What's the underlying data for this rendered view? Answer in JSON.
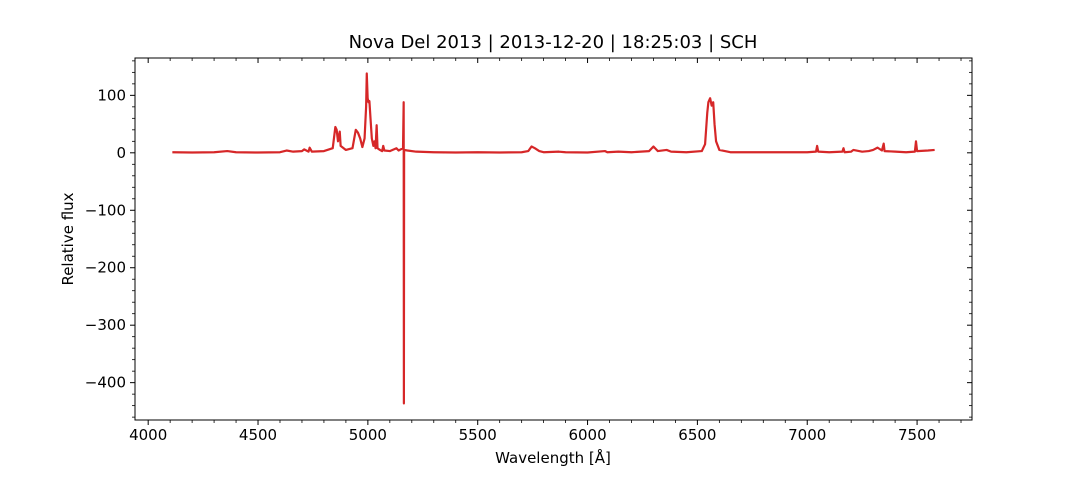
{
  "chart_data": {
    "type": "line",
    "title": "Nova Del 2013 | 2013-12-20 | 18:25:03 | SCH",
    "xlabel": "Wavelength [Å]",
    "ylabel": "Relative flux",
    "xlim": [
      3940,
      7750
    ],
    "ylim": [
      -465,
      165
    ],
    "x_ticks": [
      4000,
      4500,
      5000,
      5500,
      6000,
      6500,
      7000,
      7500
    ],
    "x_tick_labels": [
      "4000",
      "4500",
      "5000",
      "5500",
      "6000",
      "6500",
      "7000",
      "7500"
    ],
    "x_minor_step": 100,
    "y_ticks": [
      100,
      0,
      -100,
      -200,
      -300,
      -400
    ],
    "y_tick_labels": [
      "100",
      "0",
      "−100",
      "−200",
      "−300",
      "−400"
    ],
    "y_minor_step": 20,
    "grid": false,
    "legend": "none",
    "series": [
      {
        "color": "#d62728",
        "points": [
          [
            4110,
            1
          ],
          [
            4200,
            0.5
          ],
          [
            4300,
            1
          ],
          [
            4360,
            3
          ],
          [
            4400,
            1
          ],
          [
            4500,
            0.5
          ],
          [
            4600,
            1
          ],
          [
            4630,
            4
          ],
          [
            4660,
            2
          ],
          [
            4700,
            3
          ],
          [
            4710,
            6
          ],
          [
            4730,
            2
          ],
          [
            4735,
            9
          ],
          [
            4745,
            2
          ],
          [
            4800,
            3
          ],
          [
            4840,
            8
          ],
          [
            4852,
            45
          ],
          [
            4858,
            40
          ],
          [
            4864,
            20
          ],
          [
            4872,
            37
          ],
          [
            4876,
            12
          ],
          [
            4900,
            5
          ],
          [
            4930,
            8
          ],
          [
            4945,
            40
          ],
          [
            4955,
            35
          ],
          [
            4965,
            25
          ],
          [
            4975,
            10
          ],
          [
            4985,
            25
          ],
          [
            4992,
            80
          ],
          [
            4995,
            138
          ],
          [
            4999,
            95
          ],
          [
            5003,
            88
          ],
          [
            5007,
            90
          ],
          [
            5012,
            60
          ],
          [
            5018,
            25
          ],
          [
            5025,
            12
          ],
          [
            5030,
            20
          ],
          [
            5035,
            8
          ],
          [
            5040,
            48
          ],
          [
            5044,
            8
          ],
          [
            5055,
            5
          ],
          [
            5065,
            3
          ],
          [
            5070,
            12
          ],
          [
            5075,
            4
          ],
          [
            5100,
            3
          ],
          [
            5130,
            8
          ],
          [
            5140,
            4
          ],
          [
            5160,
            8
          ],
          [
            5163,
            88
          ],
          [
            5164,
            -436
          ],
          [
            5165,
            5
          ],
          [
            5180,
            4
          ],
          [
            5220,
            2
          ],
          [
            5300,
            1
          ],
          [
            5400,
            0.5
          ],
          [
            5500,
            1
          ],
          [
            5600,
            0.5
          ],
          [
            5700,
            1
          ],
          [
            5730,
            3
          ],
          [
            5745,
            11
          ],
          [
            5760,
            8
          ],
          [
            5780,
            3
          ],
          [
            5800,
            1
          ],
          [
            5870,
            2
          ],
          [
            5900,
            1
          ],
          [
            6000,
            0.5
          ],
          [
            6080,
            3
          ],
          [
            6090,
            1
          ],
          [
            6140,
            2
          ],
          [
            6200,
            1
          ],
          [
            6280,
            3
          ],
          [
            6300,
            11
          ],
          [
            6320,
            3
          ],
          [
            6360,
            5
          ],
          [
            6380,
            2
          ],
          [
            6450,
            1
          ],
          [
            6520,
            3
          ],
          [
            6535,
            15
          ],
          [
            6545,
            70
          ],
          [
            6550,
            88
          ],
          [
            6558,
            95
          ],
          [
            6565,
            82
          ],
          [
            6572,
            88
          ],
          [
            6578,
            50
          ],
          [
            6585,
            20
          ],
          [
            6600,
            5
          ],
          [
            6650,
            1
          ],
          [
            6700,
            1
          ],
          [
            6800,
            1
          ],
          [
            6900,
            1
          ],
          [
            7000,
            1
          ],
          [
            7040,
            2
          ],
          [
            7045,
            12
          ],
          [
            7050,
            2
          ],
          [
            7100,
            1
          ],
          [
            7160,
            2
          ],
          [
            7165,
            8
          ],
          [
            7170,
            1
          ],
          [
            7200,
            2
          ],
          [
            7210,
            5
          ],
          [
            7250,
            2
          ],
          [
            7280,
            3
          ],
          [
            7300,
            5
          ],
          [
            7320,
            9
          ],
          [
            7340,
            4
          ],
          [
            7348,
            16
          ],
          [
            7352,
            3
          ],
          [
            7400,
            2
          ],
          [
            7450,
            1
          ],
          [
            7490,
            2
          ],
          [
            7495,
            20
          ],
          [
            7500,
            3
          ],
          [
            7550,
            4
          ],
          [
            7580,
            5
          ]
        ]
      }
    ]
  }
}
